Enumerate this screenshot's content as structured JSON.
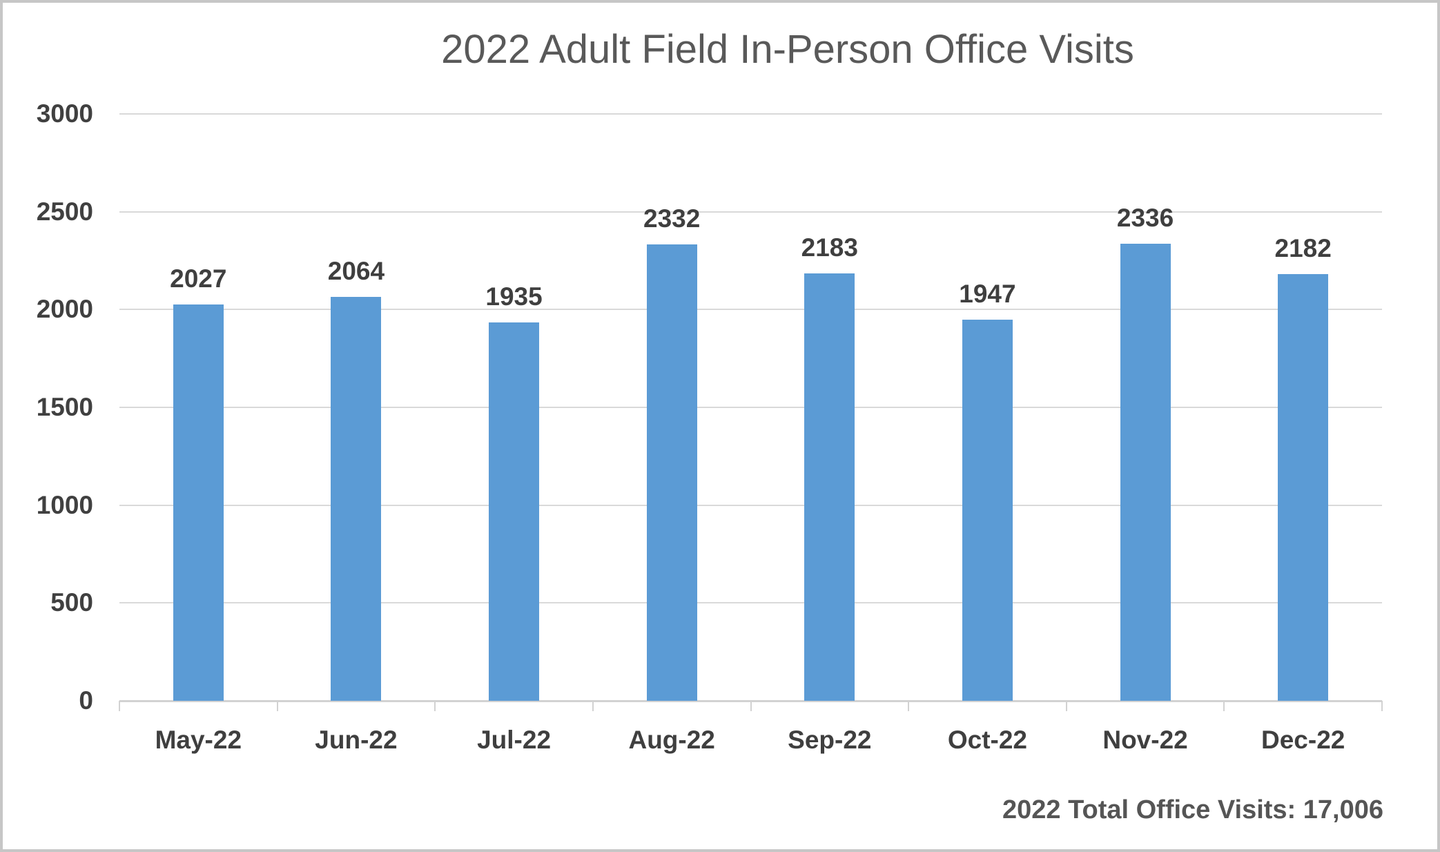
{
  "title": "2022 Adult Field In-Person Office Visits",
  "annotation": "2022 Total Office Visits: 17,006",
  "colors": {
    "bar": "#5B9BD5",
    "gridline": "#D9D9D9",
    "axis_line": "#D2D2D2",
    "title_text": "#595959",
    "label_text": "#3F3F3F",
    "frame_border": "#C6C6C6"
  },
  "chart_data": {
    "type": "bar",
    "title": "2022 Adult Field In-Person Office Visits",
    "categories": [
      "May-22",
      "Jun-22",
      "Jul-22",
      "Aug-22",
      "Sep-22",
      "Oct-22",
      "Nov-22",
      "Dec-22"
    ],
    "values": [
      2027,
      2064,
      1935,
      2332,
      2183,
      1947,
      2336,
      2182
    ],
    "data_labels": [
      "2027",
      "2064",
      "1935",
      "2332",
      "2183",
      "1947",
      "2336",
      "2182"
    ],
    "xlabel": "",
    "ylabel": "",
    "ylim": [
      0,
      3000
    ],
    "yticks": [
      0,
      500,
      1000,
      1500,
      2000,
      2500,
      3000
    ],
    "grid": true,
    "legend": false,
    "bar_color": "#5B9BD5",
    "annotation": "2022 Total Office Visits: 17,006"
  }
}
